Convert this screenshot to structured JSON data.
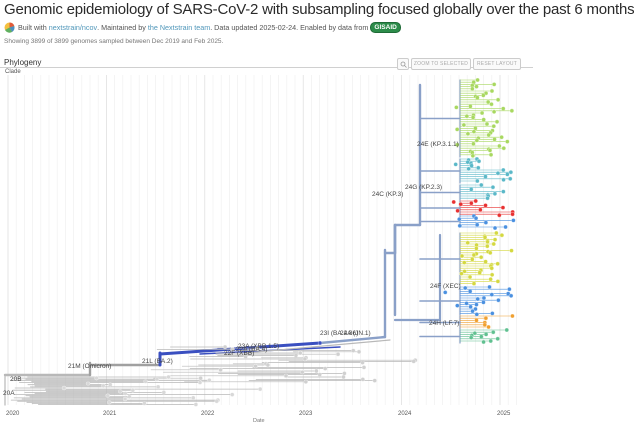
{
  "header": {
    "title": "Genomic epidemiology of SARS-CoV-2 with subsampling focused globally over the past 6 months",
    "byline": {
      "built_with": "Built with",
      "repo_link": "nextstrain/ncov",
      "maintained_by": ". Maintained by",
      "team_link": "the Nextstrain team",
      "updated": ". Data updated 2025-02-24. Enabled by data from",
      "gisaid_logo": "GISAID"
    },
    "showing": "Showing 3899 of 3899 genomes sampled between Dec 2019 and Feb 2025."
  },
  "panel": {
    "title": "Phylogeny",
    "color_by": "Clade",
    "zoom_button": "ZOOM TO SELECTED",
    "reset_button": "RESET LAYOUT",
    "search_icon": "search-icon"
  },
  "axis": {
    "xlabel": "Date",
    "ticks": [
      "2020",
      "2021",
      "2022",
      "2023",
      "2024",
      "2025"
    ]
  },
  "clades": [
    {
      "label": "20A"
    },
    {
      "label": "20B"
    },
    {
      "label": "21M (Omicron)"
    },
    {
      "label": "21L (BA.2)"
    },
    {
      "label": "22A (BA.4)"
    },
    {
      "label": "22F (XBB)"
    },
    {
      "label": "23A (XBB.1.5)"
    },
    {
      "label": "23I (BA.2.86)"
    },
    {
      "label": "24A (JN.1)"
    },
    {
      "label": "24C (KP.3)"
    },
    {
      "label": "24G (KP.2.3)"
    },
    {
      "label": "24E (KP.3.1.1)"
    },
    {
      "label": "24F (XEC)"
    },
    {
      "label": "24H (LF.7)"
    }
  ],
  "colors": {
    "grey": "#b8b8b8",
    "omicron": "#a0a0a0",
    "blue_dark": "#3a4fc0",
    "slate": "#8aa0c8",
    "lightgreen": "#a8d860",
    "teal": "#5ab8c8",
    "red": "#e83030",
    "yellow": "#d4d840",
    "mid_blue": "#4a90e0",
    "orange": "#f0a030",
    "green": "#60c090"
  }
}
